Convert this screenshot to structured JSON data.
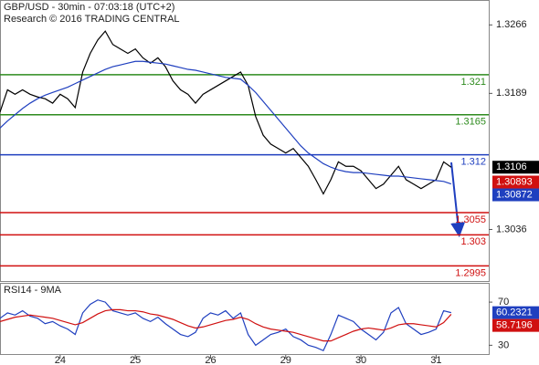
{
  "chart_data": {
    "type": "price-line",
    "title": "GBP/USD - 30min - 07:03:18 (UTC+2)",
    "subtitle": "Research © 2016 TRADING CENTRAL",
    "xlim": [
      0,
      65
    ],
    "xticks": [
      {
        "value": 8,
        "label": "24"
      },
      {
        "value": 18,
        "label": "25"
      },
      {
        "value": 28,
        "label": "26"
      },
      {
        "value": 38,
        "label": "29"
      },
      {
        "value": 48,
        "label": "30"
      },
      {
        "value": 58,
        "label": "31"
      }
    ],
    "ylim": [
      1.2978,
      1.3294
    ],
    "yticks": [
      1.3266,
      1.3189,
      1.3036
    ],
    "series": [
      {
        "color": "#000000",
        "values": [
          1.3168,
          1.3193,
          1.3188,
          1.3193,
          1.3188,
          1.3185,
          1.3183,
          1.3178,
          1.3188,
          1.3183,
          1.3173,
          1.3213,
          1.3234,
          1.3249,
          1.3259,
          1.3244,
          1.3239,
          1.3234,
          1.3239,
          1.3229,
          1.3223,
          1.3229,
          1.3219,
          1.3203,
          1.3193,
          1.3188,
          1.3178,
          1.3188,
          1.3193,
          1.3198,
          1.3203,
          1.3208,
          1.3213,
          1.3198,
          1.3163,
          1.3142,
          1.3132,
          1.3127,
          1.3122,
          1.3127,
          1.3117,
          1.3107,
          1.3092,
          1.3076,
          1.3092,
          1.3112,
          1.3107,
          1.3107,
          1.3102,
          1.3092,
          1.3082,
          1.3087,
          1.3097,
          1.3107,
          1.3092,
          1.3087,
          1.3082,
          1.3087,
          1.3092,
          1.3112,
          1.3106
        ]
      },
      {
        "color": "#1f3fbf",
        "values": [
          1.315,
          1.3158,
          1.3165,
          1.3172,
          1.3178,
          1.3183,
          1.3187,
          1.319,
          1.3193,
          1.3196,
          1.32,
          1.3204,
          1.3208,
          1.3212,
          1.3216,
          1.3219,
          1.3221,
          1.3223,
          1.3225,
          1.3225,
          1.3224,
          1.3223,
          1.3222,
          1.322,
          1.3218,
          1.3216,
          1.3215,
          1.3213,
          1.3211,
          1.3209,
          1.3207,
          1.3206,
          1.3205,
          1.3198,
          1.319,
          1.318,
          1.317,
          1.316,
          1.315,
          1.314,
          1.313,
          1.3122,
          1.3116,
          1.311,
          1.3106,
          1.3103,
          1.3101,
          1.31,
          1.31,
          1.3099,
          1.3098,
          1.3097,
          1.3096,
          1.3096,
          1.3095,
          1.3094,
          1.3093,
          1.3092,
          1.3091,
          1.309,
          1.30872
        ]
      }
    ],
    "levels": [
      {
        "value": 1.321,
        "color": "#2e8b1e"
      },
      {
        "value": 1.3165,
        "color": "#2e8b1e"
      },
      {
        "value": 1.312,
        "color": "#1f3fbf"
      },
      {
        "value": 1.3055,
        "color": "#d01010"
      },
      {
        "value": 1.303,
        "color": "#d01010"
      },
      {
        "value": 1.2995,
        "color": "#d01010"
      }
    ],
    "price_tags": [
      {
        "value": 1.3106,
        "color": "#000000"
      },
      {
        "value": 1.30893,
        "color": "#d01010"
      },
      {
        "value": 1.30872,
        "color": "#1f3fbf"
      }
    ],
    "indicator": {
      "title": "RSI14 - 9MA",
      "ylim": [
        21,
        87
      ],
      "yticks": [
        70,
        30
      ],
      "series": [
        {
          "color": "#1f3fbf",
          "values": [
            55,
            60,
            58,
            62,
            57,
            55,
            50,
            52,
            48,
            45,
            40,
            60,
            68,
            72,
            70,
            62,
            60,
            58,
            60,
            55,
            52,
            56,
            50,
            45,
            40,
            38,
            42,
            55,
            60,
            58,
            62,
            55,
            60,
            40,
            30,
            35,
            40,
            42,
            45,
            38,
            35,
            30,
            28,
            25,
            40,
            58,
            55,
            52,
            45,
            40,
            35,
            42,
            60,
            65,
            50,
            45,
            40,
            42,
            45,
            62,
            60.2321
          ]
        },
        {
          "color": "#d01010",
          "values": [
            52,
            54,
            56,
            57,
            58,
            57,
            56,
            55,
            53,
            51,
            49,
            51,
            55,
            59,
            62,
            63,
            63,
            62,
            62,
            61,
            59,
            58,
            56,
            54,
            51,
            48,
            46,
            47,
            49,
            51,
            53,
            54,
            56,
            54,
            50,
            47,
            45,
            44,
            43,
            42,
            40,
            38,
            36,
            34,
            34,
            37,
            40,
            43,
            45,
            46,
            45,
            44,
            46,
            49,
            50,
            50,
            49,
            48,
            47,
            51,
            58.7196
          ]
        }
      ],
      "tags": [
        {
          "value": 60.2321,
          "color": "#1f3fbf"
        },
        {
          "value": 58.7196,
          "color": "#d01010"
        }
      ]
    }
  }
}
